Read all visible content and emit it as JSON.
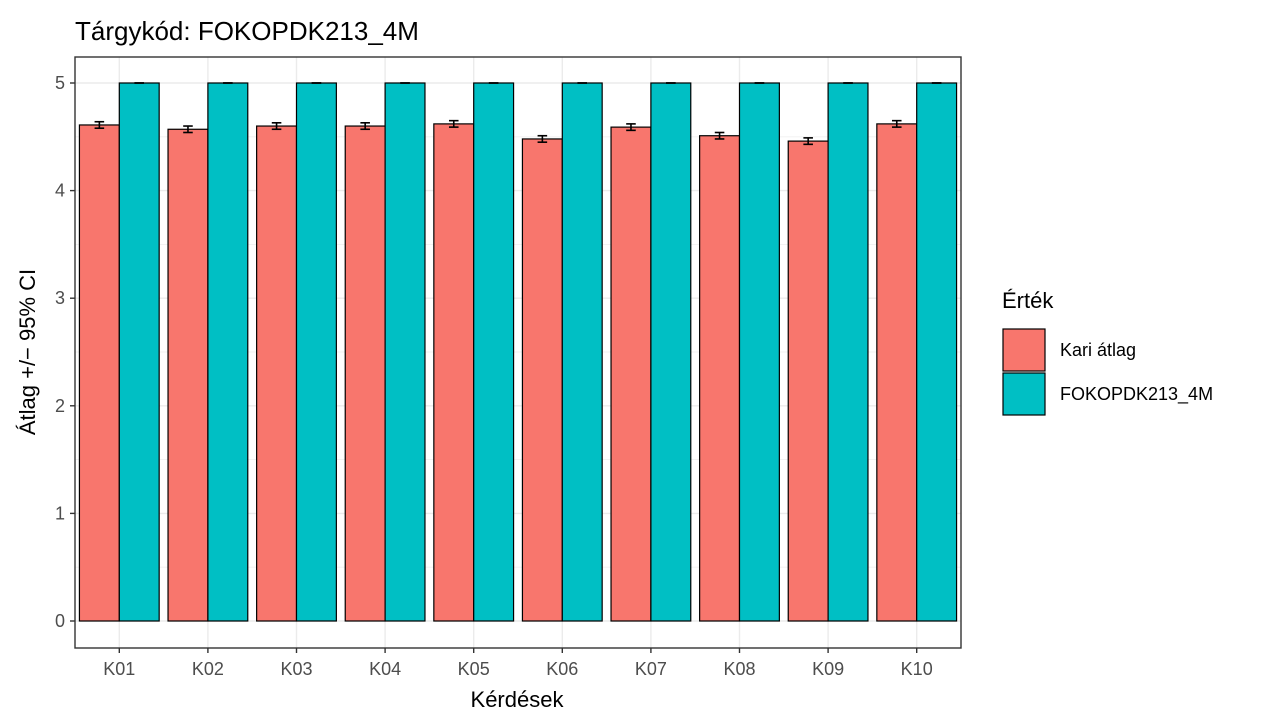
{
  "chart_data": {
    "type": "bar",
    "title": "Tárgykód:  FOKOPDK213_4M",
    "xlabel": "Kérdések",
    "ylabel": "Átlag +/− 95% CI",
    "categories": [
      "K01",
      "K02",
      "K03",
      "K04",
      "K05",
      "K06",
      "K07",
      "K08",
      "K09",
      "K10"
    ],
    "series": [
      {
        "name": "Kari átlag",
        "color": "#F8766D",
        "values": [
          4.61,
          4.57,
          4.6,
          4.6,
          4.62,
          4.48,
          4.59,
          4.51,
          4.46,
          4.62
        ],
        "ci_low": [
          4.58,
          4.54,
          4.57,
          4.57,
          4.59,
          4.45,
          4.56,
          4.48,
          4.43,
          4.59
        ],
        "ci_high": [
          4.64,
          4.6,
          4.63,
          4.63,
          4.65,
          4.51,
          4.62,
          4.54,
          4.49,
          4.65
        ]
      },
      {
        "name": "FOKOPDK213_4M",
        "color": "#00BFC4",
        "values": [
          5,
          5,
          5,
          5,
          5,
          5,
          5,
          5,
          5,
          5
        ],
        "ci_low": [
          5,
          5,
          5,
          5,
          5,
          5,
          5,
          5,
          5,
          5
        ],
        "ci_high": [
          5,
          5,
          5,
          5,
          5,
          5,
          5,
          5,
          5,
          5
        ]
      }
    ],
    "ylim": [
      0,
      5.35
    ],
    "yticks": [
      0,
      1,
      2,
      3,
      4,
      5
    ],
    "grid": true,
    "legend": {
      "title": "Érték",
      "position": "right"
    }
  }
}
